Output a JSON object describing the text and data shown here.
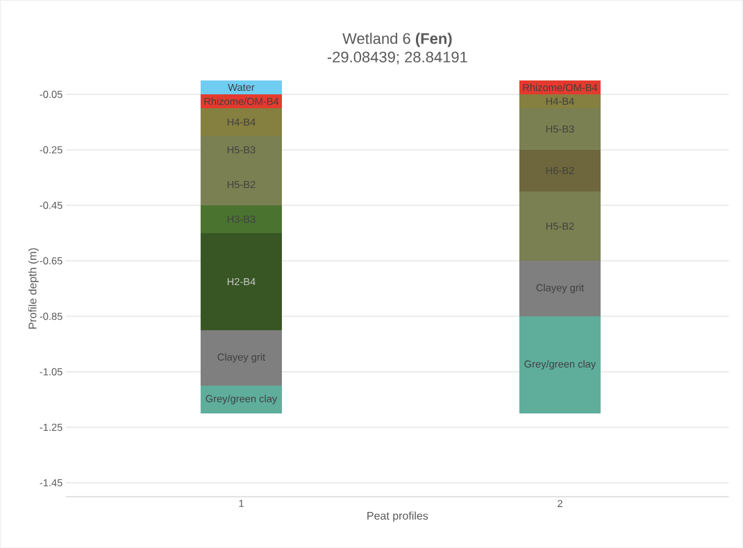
{
  "chart_data": {
    "type": "bar",
    "stacked": true,
    "title": "Wetland 6 **(Fen)**",
    "subtitle": "-29.08439; 28.84191",
    "xlabel": "Peat profiles",
    "ylabel": "Profile depth (m)",
    "categories": [
      "1",
      "2"
    ],
    "ylim": [
      -1.5,
      0
    ],
    "yticks": [
      -0.05,
      -0.25,
      -0.45,
      -0.65,
      -0.85,
      -1.05,
      -1.25,
      -1.45
    ],
    "grid": "y",
    "series": [
      {
        "name": "Water",
        "color": "#6fcdf2",
        "values": [
          -0.05,
          null
        ]
      },
      {
        "name": "Rhizome/OM-B4",
        "color": "#e53a2e",
        "values": [
          -0.05,
          null
        ]
      },
      {
        "name": "H4-B4",
        "color": "#857f40",
        "values": [
          -0.1,
          null
        ]
      },
      {
        "name": "H5-B3",
        "color": "#7b8052",
        "values": [
          -0.1,
          null
        ]
      },
      {
        "name": "H5-B2",
        "color": "#7b8052",
        "values": [
          -0.15,
          null
        ]
      },
      {
        "name": "H3-B3",
        "color": "#4a7330",
        "values": [
          -0.1,
          null
        ]
      },
      {
        "name": "H2-B4",
        "color": "#385624",
        "values": [
          -0.35,
          null
        ]
      },
      {
        "name": "Clayey grit",
        "color": "#7f7f7f",
        "values": [
          -0.2,
          null
        ]
      },
      {
        "name": "Grey/green clay",
        "color": "#5fae9c",
        "values": [
          -0.1,
          null
        ]
      },
      {
        "name": "Rhizome/OM-B4",
        "color": "#e53a2e",
        "values": [
          null,
          -0.05
        ]
      },
      {
        "name": "H4-B4",
        "color": "#857f40",
        "values": [
          null,
          -0.05
        ]
      },
      {
        "name": "H5-B3",
        "color": "#7b8052",
        "values": [
          null,
          -0.15
        ]
      },
      {
        "name": "H6-B2",
        "color": "#6e663c",
        "values": [
          null,
          -0.15
        ]
      },
      {
        "name": "H5-B2",
        "color": "#7b8052",
        "values": [
          null,
          -0.25
        ]
      },
      {
        "name": "Clayey grit",
        "color": "#7f7f7f",
        "values": [
          null,
          -0.2
        ]
      },
      {
        "name": "Grey/green clay",
        "color": "#5fae9c",
        "values": [
          null,
          -0.35
        ]
      }
    ]
  }
}
